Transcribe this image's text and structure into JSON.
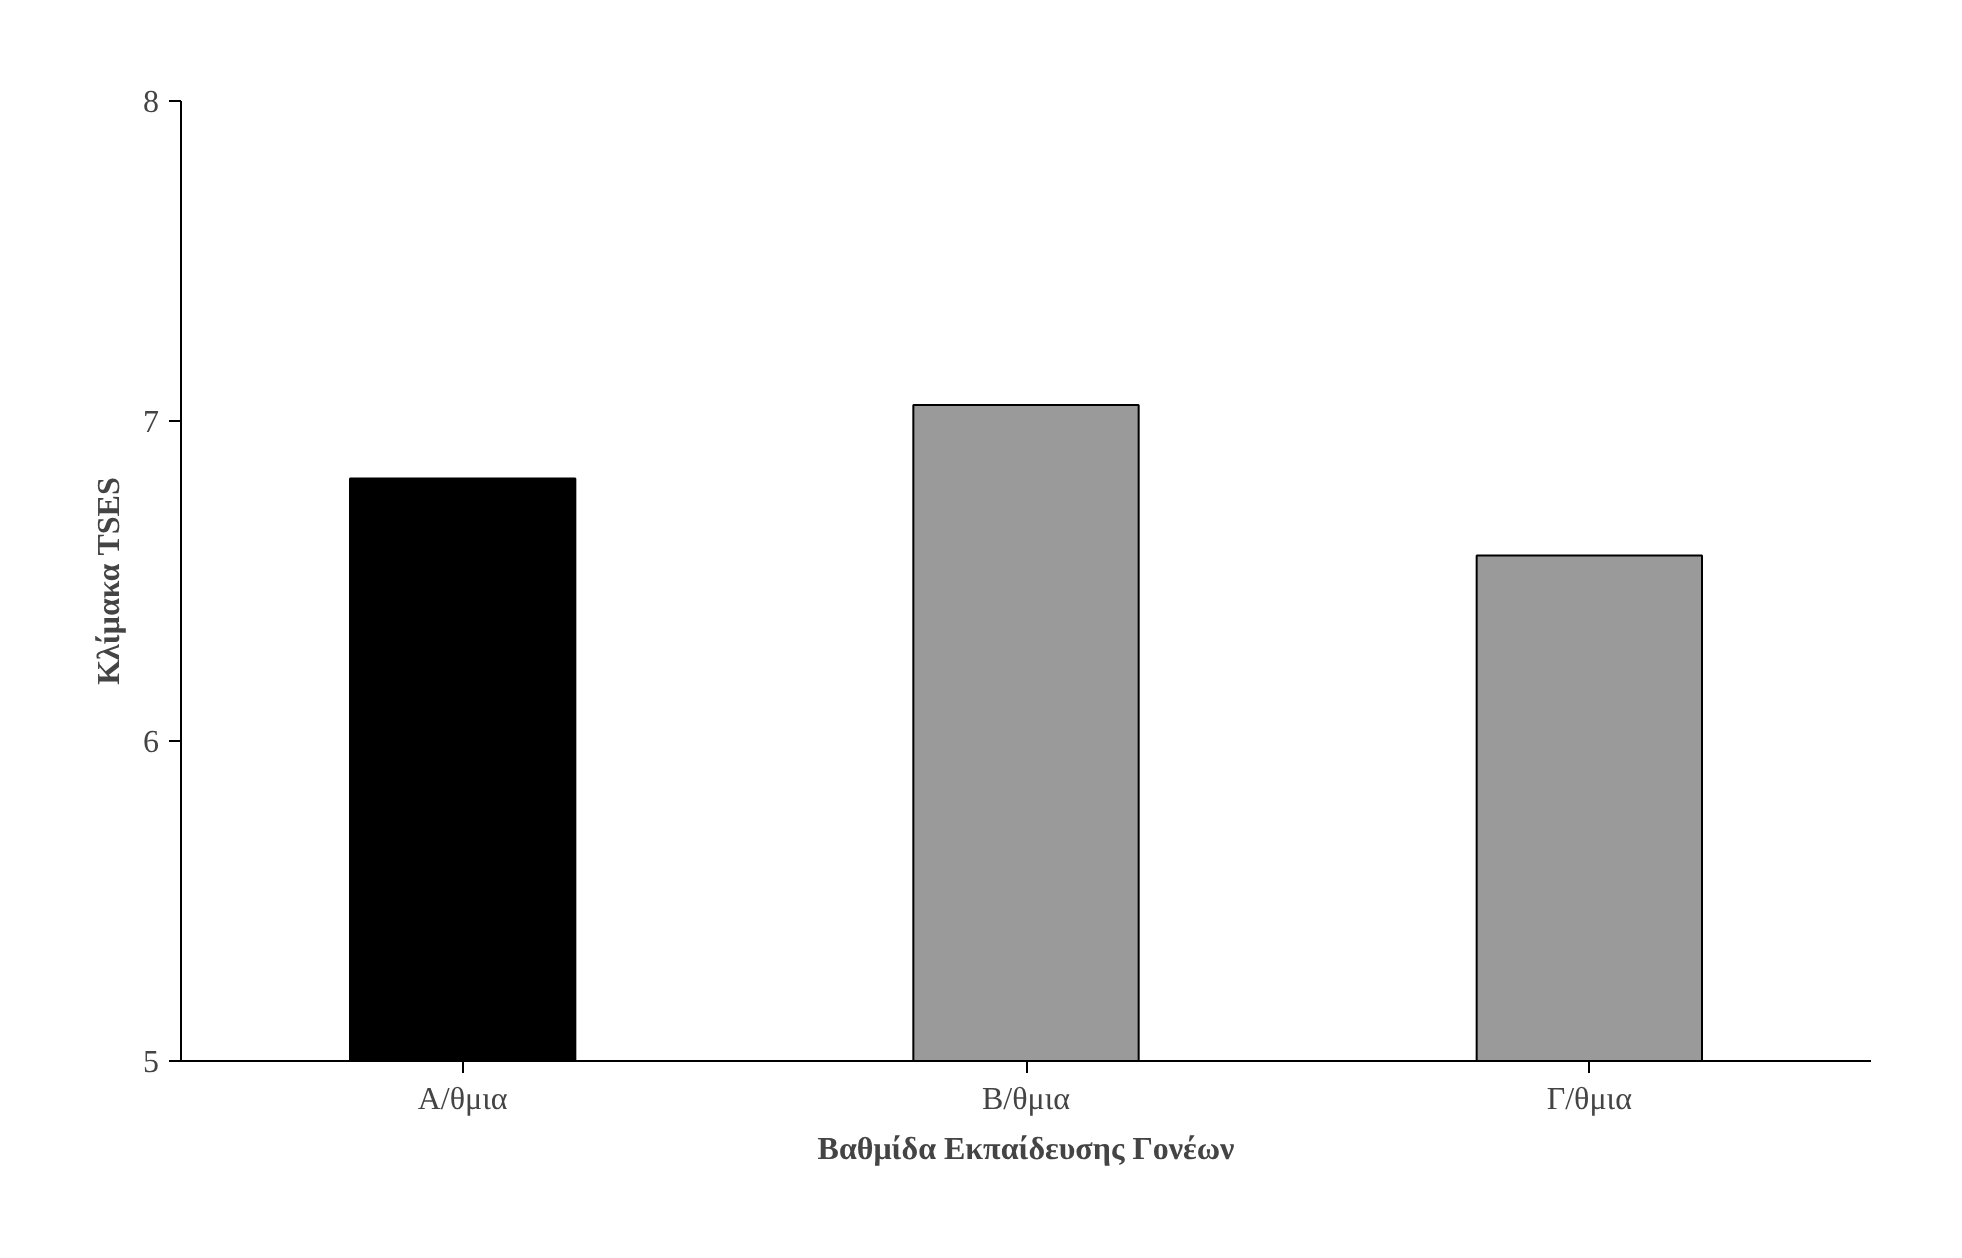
{
  "chart_data": {
    "type": "bar",
    "xlabel": "Βαθμίδα Εκπαίδευσης Γονέων",
    "ylabel": "Κλίμακα TSES",
    "categories": [
      "Α/θμια",
      "Β/θμια",
      "Γ/θμια"
    ],
    "values": [
      6.82,
      7.05,
      6.58
    ],
    "colors": [
      "#000000",
      "#9a9a9a",
      "#9a9a9a"
    ],
    "ylim": [
      5,
      8
    ],
    "yticks": [
      5,
      6,
      7,
      8
    ],
    "grid": false
  }
}
